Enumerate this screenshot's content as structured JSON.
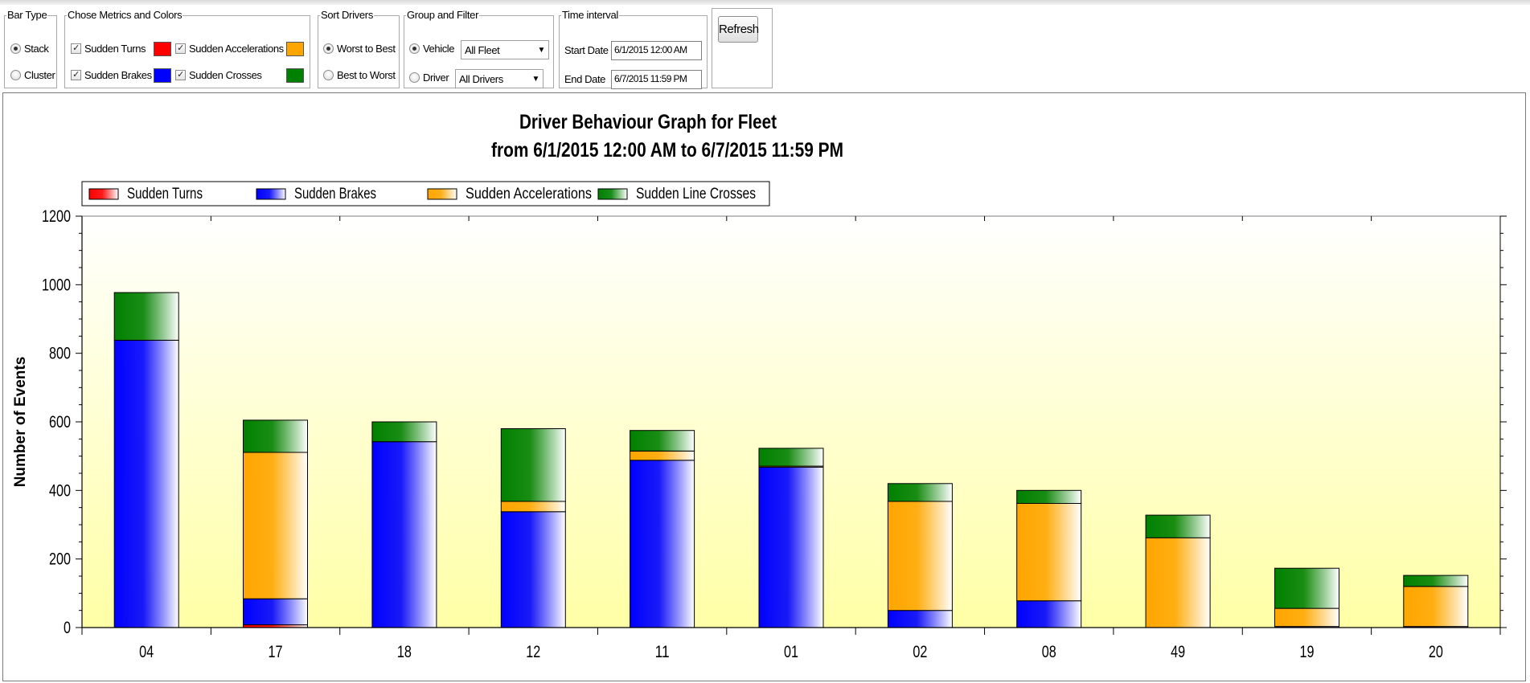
{
  "controls": {
    "bar_type": {
      "legend": "Bar Type",
      "options": [
        {
          "label": "Stack",
          "checked": true
        },
        {
          "label": "Cluster",
          "checked": false
        }
      ]
    },
    "metrics": {
      "legend": "Chose Metrics and Colors",
      "items": [
        {
          "label": "Sudden Turns",
          "checked": true,
          "color": "#ff0000"
        },
        {
          "label": "Sudden Accelerations",
          "checked": true,
          "color": "#ffa500"
        },
        {
          "label": "Sudden Brakes",
          "checked": true,
          "color": "#0000ff"
        },
        {
          "label": "Sudden Crosses",
          "checked": true,
          "color": "#008000"
        }
      ]
    },
    "sort": {
      "legend": "Sort Drivers",
      "options": [
        {
          "label": "Worst to Best",
          "checked": true
        },
        {
          "label": "Best to Worst",
          "checked": false
        }
      ]
    },
    "group_filter": {
      "legend": "Group and Filter",
      "vehicle_label": "Vehicle",
      "vehicle_checked": true,
      "vehicle_value": "All Fleet",
      "driver_label": "Driver",
      "driver_checked": false,
      "driver_value": "All Drivers"
    },
    "time_interval": {
      "legend": "Time interval",
      "start_label": "Start Date",
      "start_value": "6/1/2015 12:00 AM",
      "end_label": "End Date",
      "end_value": "6/7/2015 11:59 PM"
    },
    "refresh_label": "Refresh"
  },
  "chart_data": {
    "type": "bar",
    "stacked": true,
    "title": "Driver Behaviour Graph for Fleet",
    "subtitle": "from 6/1/2015 12:00 AM to 6/7/2015 11:59 PM",
    "ylabel": "Number of Events",
    "xlabel": "",
    "ylim": [
      0,
      1200
    ],
    "yticks": [
      0,
      200,
      400,
      600,
      800,
      1000,
      1200
    ],
    "legend_position": "top-left",
    "grid": false,
    "categories": [
      "04",
      "17",
      "18",
      "12",
      "11",
      "01",
      "02",
      "08",
      "49",
      "19",
      "20"
    ],
    "series": [
      {
        "name": "Sudden Turns",
        "color": "#ff0000",
        "values": [
          0,
          8,
          0,
          0,
          0,
          0,
          0,
          0,
          0,
          0,
          0
        ]
      },
      {
        "name": "Sudden Brakes",
        "color": "#0000ff",
        "values": [
          838,
          76,
          542,
          338,
          488,
          468,
          50,
          78,
          0,
          3,
          3
        ]
      },
      {
        "name": "Sudden Accelerations",
        "color": "#ffa500",
        "values": [
          0,
          427,
          0,
          30,
          27,
          3,
          318,
          284,
          262,
          53,
          117
        ]
      },
      {
        "name": "Sudden Line Crosses",
        "color": "#008000",
        "values": [
          139,
          94,
          58,
          212,
          60,
          52,
          52,
          38,
          66,
          117,
          32
        ]
      }
    ]
  }
}
